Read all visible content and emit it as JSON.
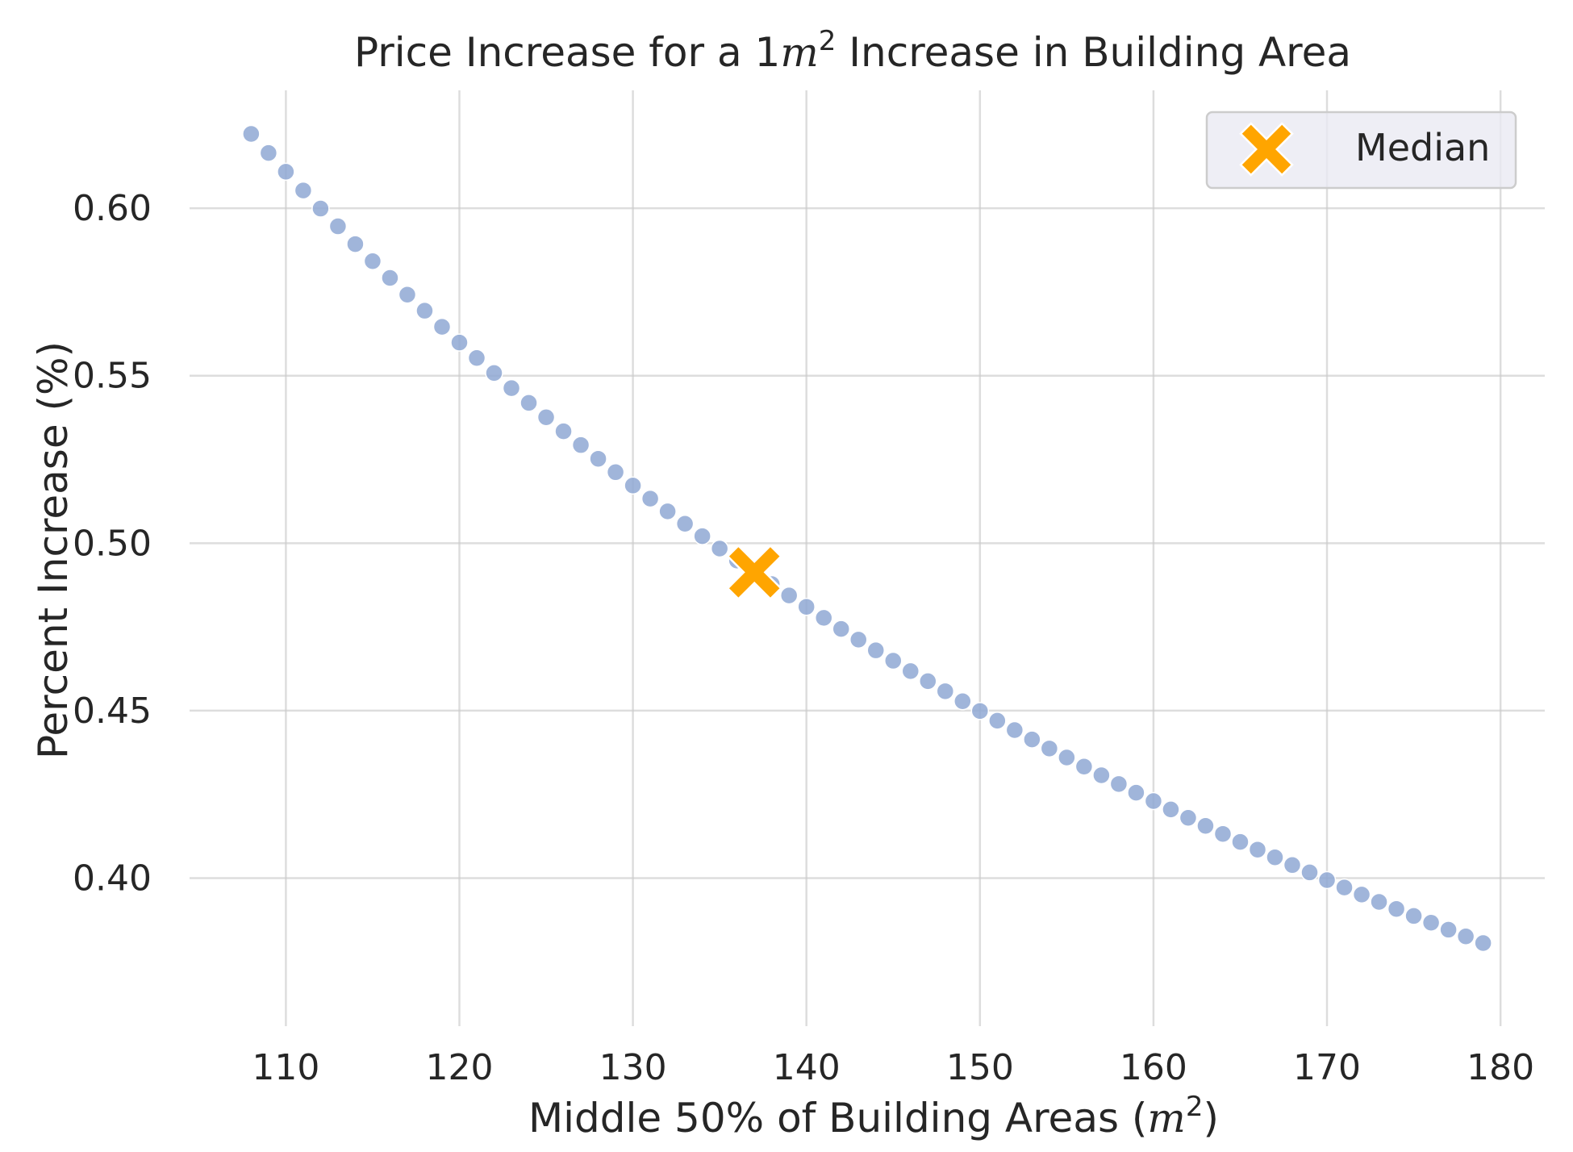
{
  "chart_data": {
    "type": "scatter",
    "title": {
      "prefix": "Price Increase for a 1",
      "math_var": "m",
      "superscript": "2",
      "suffix": " Increase in Building Area"
    },
    "xlabel": {
      "prefix": "Middle 50% of Building Areas (",
      "math_var": "m",
      "superscript": "2",
      "suffix": ")"
    },
    "ylabel": "Percent Increase (%)",
    "xlim": [
      104.45,
      182.55
    ],
    "ylim": [
      0.3558,
      0.6352
    ],
    "xticks": [
      110,
      120,
      130,
      140,
      150,
      160,
      170,
      180
    ],
    "xtick_labels": [
      "110",
      "120",
      "130",
      "140",
      "150",
      "160",
      "170",
      "180"
    ],
    "yticks": [
      0.4,
      0.45,
      0.5,
      0.55,
      0.6
    ],
    "ytick_labels": [
      "0.40",
      "0.45",
      "0.50",
      "0.55",
      "0.60"
    ],
    "grid": true,
    "series": [
      {
        "color": "#8fa8d3",
        "x": [
          108,
          109,
          110,
          111,
          112,
          113,
          114,
          115,
          116,
          117,
          118,
          119,
          120,
          121,
          122,
          123,
          124,
          125,
          126,
          127,
          128,
          129,
          130,
          131,
          132,
          133,
          134,
          135,
          136,
          137,
          138,
          139,
          140,
          141,
          142,
          143,
          144,
          145,
          146,
          147,
          148,
          149,
          150,
          151,
          152,
          153,
          154,
          155,
          156,
          157,
          158,
          159,
          160,
          161,
          162,
          163,
          164,
          165,
          166,
          167,
          168,
          169,
          170,
          171,
          172,
          173,
          174,
          175,
          176,
          177,
          178,
          179
        ],
        "y": [
          0.6222,
          0.6165,
          0.6109,
          0.6053,
          0.5999,
          0.5946,
          0.5893,
          0.5842,
          0.5792,
          0.5742,
          0.5694,
          0.5646,
          0.5599,
          0.5553,
          0.5508,
          0.5463,
          0.5419,
          0.5376,
          0.5334,
          0.5293,
          0.5252,
          0.5212,
          0.5172,
          0.5133,
          0.5095,
          0.5058,
          0.5021,
          0.4984,
          0.4948,
          0.4913,
          0.4878,
          0.4844,
          0.481,
          0.4777,
          0.4744,
          0.4712,
          0.468,
          0.4649,
          0.4618,
          0.4588,
          0.4558,
          0.4528,
          0.4499,
          0.447,
          0.4442,
          0.4414,
          0.4387,
          0.436,
          0.4333,
          0.4307,
          0.4281,
          0.4255,
          0.423,
          0.4205,
          0.418,
          0.4156,
          0.4132,
          0.4108,
          0.4085,
          0.4062,
          0.4039,
          0.4017,
          0.3994,
          0.3972,
          0.3951,
          0.3929,
          0.3908,
          0.3887,
          0.3867,
          0.3846,
          0.3826,
          0.3806
        ]
      },
      {
        "name": "Median",
        "marker": "X",
        "color": "#ffa500",
        "x": [
          137
        ],
        "y": [
          0.4913
        ]
      }
    ],
    "legend": {
      "entries": [
        "Median"
      ],
      "placement": "top-right"
    }
  }
}
